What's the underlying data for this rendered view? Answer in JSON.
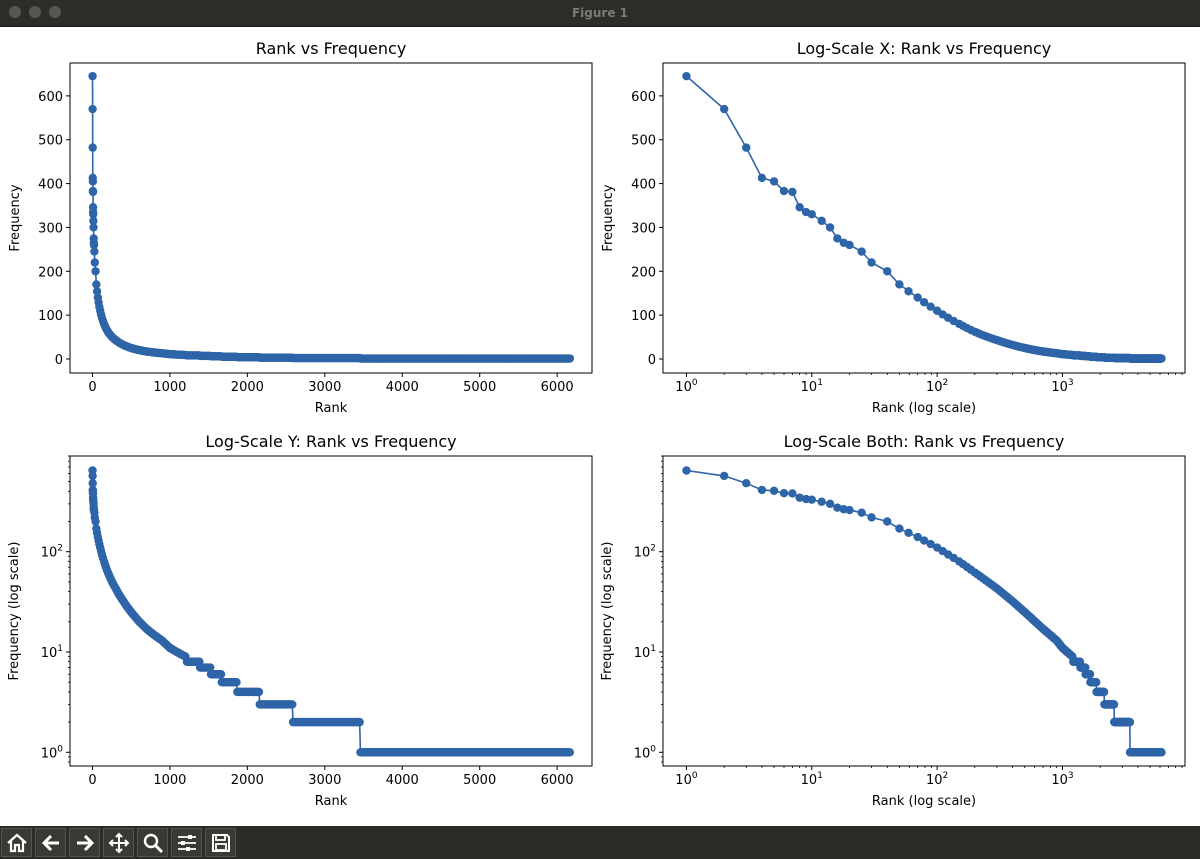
{
  "window": {
    "title": "Figure 1"
  },
  "toolbar": {
    "buttons": [
      {
        "icon": "home-icon"
      },
      {
        "icon": "back-arrow-icon"
      },
      {
        "icon": "forward-arrow-icon"
      },
      {
        "icon": "pan-icon"
      },
      {
        "icon": "zoom-icon"
      },
      {
        "icon": "configure-subplots-icon"
      },
      {
        "icon": "save-icon"
      }
    ]
  },
  "colors": {
    "series": "#2e64a8",
    "axes": "#000000",
    "background": "#ffffff"
  },
  "chart_data": [
    {
      "type": "line",
      "title": "Rank vs Frequency",
      "xlabel": "Rank",
      "ylabel": "Frequency",
      "xscale": "linear",
      "yscale": "linear",
      "xlim": [
        -290,
        6450
      ],
      "ylim": [
        -32,
        675
      ],
      "xticks": [
        0,
        1000,
        2000,
        3000,
        4000,
        5000,
        6000
      ],
      "xtick_labels": [
        "0",
        "1000",
        "2000",
        "3000",
        "4000",
        "5000",
        "6000"
      ],
      "yticks": [
        0,
        100,
        200,
        300,
        400,
        500,
        600
      ],
      "ytick_labels": [
        "0",
        "100",
        "200",
        "300",
        "400",
        "500",
        "600"
      ],
      "grid": false,
      "markers": true,
      "series_ref": "zipf"
    },
    {
      "type": "line",
      "title": "Log-Scale X: Rank vs Frequency",
      "xlabel": "Rank (log scale)",
      "ylabel": "Frequency",
      "xscale": "log",
      "yscale": "linear",
      "xlim": [
        0.65,
        9500
      ],
      "ylim": [
        -32,
        675
      ],
      "xticks": [
        1,
        10,
        100,
        1000
      ],
      "xtick_labels": [
        "10^0",
        "10^1",
        "10^2",
        "10^3"
      ],
      "yticks": [
        0,
        100,
        200,
        300,
        400,
        500,
        600
      ],
      "ytick_labels": [
        "0",
        "100",
        "200",
        "300",
        "400",
        "500",
        "600"
      ],
      "grid": false,
      "markers": true,
      "series_ref": "zipf"
    },
    {
      "type": "line",
      "title": "Log-Scale Y: Rank vs Frequency",
      "xlabel": "Rank",
      "ylabel": "Frequency (log scale)",
      "xscale": "linear",
      "yscale": "log",
      "xlim": [
        -290,
        6450
      ],
      "ylim": [
        0.73,
        900
      ],
      "xticks": [
        0,
        1000,
        2000,
        3000,
        4000,
        5000,
        6000
      ],
      "xtick_labels": [
        "0",
        "1000",
        "2000",
        "3000",
        "4000",
        "5000",
        "6000"
      ],
      "yticks": [
        1,
        10,
        100
      ],
      "ytick_labels": [
        "10^0",
        "10^1",
        "10^2"
      ],
      "grid": false,
      "markers": true,
      "series_ref": "zipf"
    },
    {
      "type": "line",
      "title": "Log-Scale Both: Rank vs Frequency",
      "xlabel": "Rank (log scale)",
      "ylabel": "Frequency (log scale)",
      "xscale": "log",
      "yscale": "log",
      "xlim": [
        0.65,
        9500
      ],
      "ylim": [
        0.73,
        900
      ],
      "xticks": [
        1,
        10,
        100,
        1000
      ],
      "xtick_labels": [
        "10^0",
        "10^1",
        "10^2",
        "10^3"
      ],
      "yticks": [
        1,
        10,
        100
      ],
      "ytick_labels": [
        "10^0",
        "10^1",
        "10^2"
      ],
      "grid": false,
      "markers": true,
      "series_ref": "zipf"
    }
  ],
  "series_data": {
    "zipf": {
      "total_points": 6164,
      "head": {
        "rank": [
          1,
          2,
          3,
          4,
          5,
          6,
          7,
          8,
          9,
          10,
          12,
          14,
          16,
          18,
          20,
          25,
          30,
          40,
          50,
          70,
          100,
          150,
          200,
          300,
          400,
          500,
          700,
          900,
          1000,
          1200
        ],
        "frequency": [
          645,
          570,
          482,
          413,
          405,
          383,
          381,
          346,
          335,
          330,
          315,
          300,
          275,
          265,
          260,
          245,
          220,
          200,
          170,
          140,
          110,
          80,
          62,
          43,
          32,
          25,
          17,
          13,
          11,
          9
        ]
      },
      "plateaus": [
        {
          "frequency": 8,
          "rank_start": 1220,
          "rank_end": 1380
        },
        {
          "frequency": 7,
          "rank_start": 1390,
          "rank_end": 1520
        },
        {
          "frequency": 6,
          "rank_start": 1530,
          "rank_end": 1660
        },
        {
          "frequency": 5,
          "rank_start": 1670,
          "rank_end": 1860
        },
        {
          "frequency": 4,
          "rank_start": 1870,
          "rank_end": 2150
        },
        {
          "frequency": 3,
          "rank_start": 2160,
          "rank_end": 2580
        },
        {
          "frequency": 2,
          "rank_start": 2590,
          "rank_end": 3450
        },
        {
          "frequency": 1,
          "rank_start": 3460,
          "rank_end": 6164
        }
      ]
    }
  }
}
